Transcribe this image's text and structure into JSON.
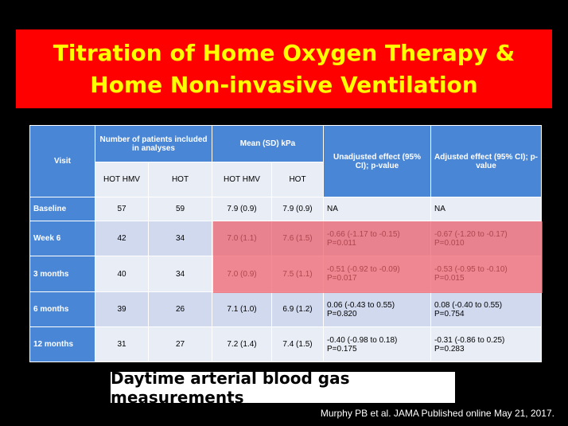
{
  "title": {
    "line1": "Titration of Home Oxygen Therapy &",
    "line2": "Home Non-invasive Ventilation"
  },
  "table": {
    "headers": {
      "visit": "Visit",
      "patients": "Number of patients included in analyses",
      "mean": "Mean (SD) kPa",
      "unadjusted": "Unadjusted effect (95% CI); p-value",
      "adjusted": "Adjusted effect (95% CI); p-value",
      "hot_hmv": "HOT HMV",
      "hot": "HOT",
      "hot_hmv2": "HOT HMV",
      "hot2": "HOT"
    },
    "rows": [
      {
        "visit": "Baseline",
        "n_hmv": "57",
        "n_hot": "59",
        "m_hmv": "7.9 (0.9)",
        "m_hot": "7.9 (0.9)",
        "u1": "NA",
        "u2": "",
        "a1": "NA",
        "a2": ""
      },
      {
        "visit": "Week 6",
        "n_hmv": "42",
        "n_hot": "34",
        "m_hmv": "7.0 (1.1)",
        "m_hot": "7.6 (1.5)",
        "u1": "-0.66 (-1.17 to -0.15)",
        "u2": "P=0.011",
        "a1": "-0.67 (-1.20 to -0.17)",
        "a2": "P=0.010"
      },
      {
        "visit": "3 months",
        "n_hmv": "40",
        "n_hot": "34",
        "m_hmv": "7.0 (0.9)",
        "m_hot": "7.5 (1.1)",
        "u1": "-0.51 (-0.92 to -0.09)",
        "u2": "P=0.017",
        "a1": "-0.53 (-0.95 to -0.10)",
        "a2": "P=0.015"
      },
      {
        "visit": "6 months",
        "n_hmv": "39",
        "n_hot": "26",
        "m_hmv": "7.1 (1.0)",
        "m_hot": "6.9 (1.2)",
        "u1": "0.06 (-0.43 to 0.55)",
        "u2": "P=0.820",
        "a1": "0.08 (-0.40 to 0.55)",
        "a2": "P=0.754"
      },
      {
        "visit": "12 months",
        "n_hmv": "31",
        "n_hot": "27",
        "m_hmv": "7.2 (1.4)",
        "m_hot": "7.4 (1.5)",
        "u1": "-0.40 (-0.98 to 0.18)",
        "u2": "P=0.175",
        "a1": "-0.31 (-0.86 to 0.25)",
        "a2": "P=0.283"
      }
    ]
  },
  "caption": "Daytime arterial blood gas measurements",
  "citation": "Murphy PB et al.  JAMA Published online May 21, 2017.",
  "colors": {
    "title_bg": "#ff0000",
    "title_text": "#ffff00",
    "header_bg": "#4a86d6",
    "highlight": "#f05f69"
  }
}
